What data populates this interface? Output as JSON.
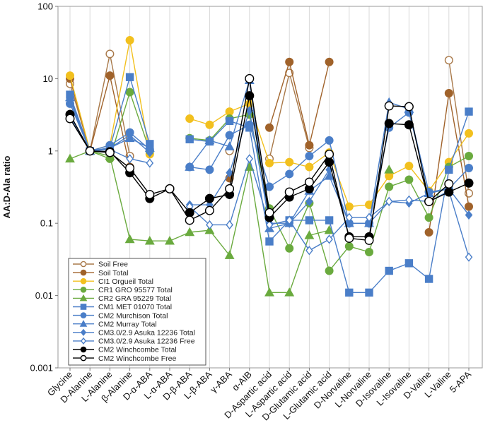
{
  "chart_data": {
    "type": "line",
    "title": "",
    "xlabel": "",
    "ylabel": "AA:D-Ala ratio",
    "yscale": "log",
    "ylim": [
      0.001,
      100
    ],
    "y_ticks": [
      "0.001",
      "0.01",
      "0.1",
      "1",
      "10",
      "100"
    ],
    "grid": "vertical gridlines at each category",
    "legend_position": "lower-left",
    "categories": [
      "Glycine",
      "D-Alanine",
      "L-Alanine",
      "β-Alanine",
      "D-α-ABA",
      "L-α-ABA",
      "D-β-ABA",
      "L-β-ABA",
      "γ-ABA",
      "α-AIB",
      "D-Aspartic acid",
      "L-Aspartic acid",
      "D-Glutamic acid",
      "L-Glutamic acid",
      "D-Norvaline",
      "L-Norvaline",
      "D-Isovaline",
      "L-Isovaline",
      "D-Valine",
      "L-Valine",
      "5-APA"
    ],
    "series": [
      {
        "name": "Soil Free",
        "color": "#a87848",
        "marker": "circle",
        "filled": false,
        "values": [
          8.5,
          1,
          22,
          0.85,
          null,
          null,
          null,
          null,
          1.0,
          null,
          0.78,
          12,
          1.1,
          null,
          null,
          null,
          null,
          null,
          null,
          18,
          0.26
        ]
      },
      {
        "name": "Soil Total",
        "color": "#a0622a",
        "marker": "circle",
        "filled": true,
        "values": [
          10,
          1,
          11,
          0.6,
          null,
          null,
          null,
          null,
          0.42,
          null,
          2.1,
          17,
          1.2,
          17,
          null,
          null,
          null,
          null,
          0.075,
          6.3,
          0.17
        ]
      },
      {
        "name": "CI1 Orgueil Total",
        "color": "#f2c01e",
        "marker": "circle",
        "filled": true,
        "values": [
          11,
          1,
          1.2,
          34,
          0.9,
          null,
          2.8,
          2.3,
          3.5,
          4.5,
          0.68,
          0.7,
          0.6,
          0.95,
          0.17,
          0.18,
          0.45,
          0.62,
          0.28,
          0.7,
          1.75
        ]
      },
      {
        "name": "CR1 GRO 95577 Total",
        "color": "#6aaa3e",
        "marker": "circle",
        "filled": true,
        "values": [
          null,
          1,
          0.78,
          6.5,
          1.0,
          null,
          1.5,
          1.4,
          2.8,
          3.2,
          0.16,
          0.045,
          0.19,
          0.022,
          0.048,
          0.04,
          0.32,
          0.4,
          0.12,
          0.6,
          0.85
        ]
      },
      {
        "name": "CR2 GRA 95229 Total",
        "color": "#6aaa3e",
        "marker": "triangle",
        "filled": true,
        "values": [
          0.78,
          1,
          0.85,
          0.06,
          0.057,
          0.057,
          0.075,
          0.08,
          0.036,
          0.6,
          0.011,
          0.011,
          0.068,
          0.08,
          null,
          null,
          0.55,
          null,
          null,
          null,
          null
        ]
      },
      {
        "name": "CM1 MET 01070 Total",
        "color": "#4a7ec8",
        "marker": "square",
        "filled": true,
        "values": [
          6,
          1,
          1.1,
          10.5,
          1.25,
          null,
          1.45,
          1.35,
          2.6,
          2.1,
          0.056,
          0.11,
          0.11,
          0.11,
          0.011,
          0.011,
          0.022,
          0.028,
          0.017,
          0.55,
          3.5
        ]
      },
      {
        "name": "CM2 Murchison Total",
        "color": "#4a7ec8",
        "marker": "circle",
        "filled": true,
        "values": [
          4.5,
          1,
          1.2,
          1.8,
          1.05,
          null,
          0.6,
          0.55,
          1.65,
          2.3,
          0.32,
          0.48,
          0.85,
          1.4,
          0.1,
          0.1,
          2.1,
          3.4,
          0.27,
          0.3,
          0.58
        ]
      },
      {
        "name": "CM2 Murray Total",
        "color": "#4a7ec8",
        "marker": "triangle",
        "filled": true,
        "values": [
          5.5,
          1,
          1.1,
          1.5,
          1.1,
          null,
          0.6,
          1.4,
          1.15,
          9.5,
          0.085,
          0.1,
          0.28,
          0.45,
          0.1,
          0.1,
          4.7,
          3.8,
          0.26,
          0.3,
          null
        ]
      },
      {
        "name": "CM3.0/2.9 Asuka 12236 Total",
        "color": "#4a7ec8",
        "marker": "diamond",
        "filled": true,
        "values": [
          5,
          1,
          1.1,
          1.65,
          0.95,
          null,
          0.18,
          0.18,
          0.5,
          3.6,
          0.1,
          0.1,
          0.2,
          0.55,
          0.1,
          0.1,
          0.2,
          0.19,
          0.26,
          0.3,
          0.13
        ]
      },
      {
        "name": "CM3.0/2.9 Asuka 12236 Free",
        "color": "#4a7ec8",
        "marker": "diamond",
        "filled": false,
        "values": [
          3,
          1,
          1.05,
          0.78,
          0.68,
          null,
          0.17,
          0.095,
          0.095,
          0.78,
          0.095,
          0.11,
          0.042,
          0.06,
          0.12,
          0.12,
          0.2,
          0.21,
          0.2,
          0.28,
          0.034
        ]
      },
      {
        "name": "CM2 Winchcombe Total",
        "color": "#000000",
        "marker": "circle",
        "filled": true,
        "values": [
          3.2,
          1,
          0.98,
          0.5,
          0.22,
          0.3,
          0.14,
          0.22,
          0.25,
          5.8,
          0.12,
          0.23,
          0.3,
          0.7,
          0.065,
          0.065,
          2.4,
          2.3,
          0.2,
          0.27,
          0.36
        ]
      },
      {
        "name": "CM2 Winchcombe Free",
        "color": "#000000",
        "marker": "circle",
        "filled": false,
        "values": [
          2.8,
          1,
          0.95,
          0.58,
          0.25,
          0.3,
          0.11,
          0.15,
          0.3,
          10,
          0.14,
          0.27,
          0.37,
          0.9,
          0.062,
          0.058,
          4.2,
          4.1,
          0.2,
          0.35,
          null
        ]
      }
    ]
  }
}
